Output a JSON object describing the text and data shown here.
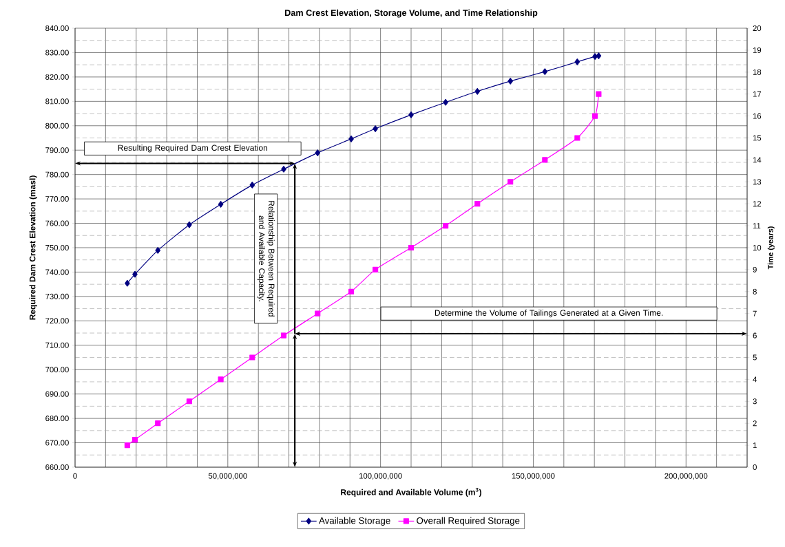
{
  "chart_data": {
    "type": "line",
    "title": "Dam Crest Elevation, Storage Volume, and Time Relationship",
    "xlabel": "Required and Available Volume (m$^{3}$)",
    "ylabel": "Required Dam Crest Elevation (masl)",
    "y2label": "Time (years)",
    "x": [
      17100000,
      19600000,
      27100000,
      37400000,
      47700000,
      58000000,
      68300000,
      79400000,
      90400000,
      98300000,
      110000000,
      121300000,
      131700000,
      142500000,
      153800000,
      164400000,
      170200000,
      171400000
    ],
    "series": [
      {
        "name": "Available Storage",
        "color": "#000080",
        "marker": "diamond",
        "values": [
          735.4,
          739.1,
          748.9,
          759.4,
          767.8,
          775.7,
          782.2,
          788.9,
          794.6,
          798.8,
          804.5,
          809.6,
          814.1,
          818.3,
          822.2,
          826.2,
          828.4,
          828.7
        ]
      },
      {
        "name": "Overall Required Storage",
        "color": "#ff00ff",
        "marker": "square",
        "axis": "y2",
        "values": [
          1,
          1.25,
          2,
          3,
          4,
          5,
          6,
          7,
          8,
          9,
          10,
          11,
          12,
          13,
          14,
          15,
          16,
          17
        ]
      }
    ],
    "xlim": [
      0,
      220000000
    ],
    "xticks": [
      {
        "value": 0,
        "label": "0"
      },
      {
        "value": 10000000,
        "label": null
      },
      {
        "value": 20000000,
        "label": null
      },
      {
        "value": 30000000,
        "label": null
      },
      {
        "value": 40000000,
        "label": null
      },
      {
        "value": 50000000,
        "label": "50,000,000"
      },
      {
        "value": 60000000,
        "label": null
      },
      {
        "value": 70000000,
        "label": null
      },
      {
        "value": 80000000,
        "label": null
      },
      {
        "value": 90000000,
        "label": null
      },
      {
        "value": 100000000,
        "label": "100,000,000"
      },
      {
        "value": 110000000,
        "label": null
      },
      {
        "value": 120000000,
        "label": null
      },
      {
        "value": 130000000,
        "label": null
      },
      {
        "value": 140000000,
        "label": null
      },
      {
        "value": 150000000,
        "label": "150,000,000"
      },
      {
        "value": 160000000,
        "label": null
      },
      {
        "value": 170000000,
        "label": null
      },
      {
        "value": 180000000,
        "label": null
      },
      {
        "value": 190000000,
        "label": null
      },
      {
        "value": 200000000,
        "label": "200,000,000"
      },
      {
        "value": 210000000,
        "label": null
      },
      {
        "value": 220000000,
        "label": null
      }
    ],
    "ylim": [
      660,
      840
    ],
    "yticks": [
      {
        "value": 660,
        "label": "660.00"
      },
      {
        "value": 670,
        "label": "670.00"
      },
      {
        "value": 680,
        "label": "680.00"
      },
      {
        "value": 690,
        "label": "690.00"
      },
      {
        "value": 700,
        "label": "700.00"
      },
      {
        "value": 710,
        "label": "710.00"
      },
      {
        "value": 720,
        "label": "720.00"
      },
      {
        "value": 730,
        "label": "730.00"
      },
      {
        "value": 740,
        "label": "740.00"
      },
      {
        "value": 750,
        "label": "750.00"
      },
      {
        "value": 760,
        "label": "760.00"
      },
      {
        "value": 770,
        "label": "770.00"
      },
      {
        "value": 780,
        "label": "780.00"
      },
      {
        "value": 790,
        "label": "790.00"
      },
      {
        "value": 800,
        "label": "800.00"
      },
      {
        "value": 810,
        "label": "810.00"
      },
      {
        "value": 820,
        "label": "820.00"
      },
      {
        "value": 830,
        "label": "830.00"
      },
      {
        "value": 840,
        "label": "840.00"
      }
    ],
    "y2lim": [
      0,
      20
    ],
    "y2ticks": [
      0,
      1,
      2,
      3,
      4,
      5,
      6,
      7,
      8,
      9,
      10,
      11,
      12,
      13,
      14,
      15,
      16,
      17,
      18,
      19,
      20
    ],
    "grid": true,
    "legend": "bottom",
    "annotations": [
      "Resulting Required Dam Crest Elevation",
      "Relationship Between Required and Available Capacity.",
      "Determine the Volume of Tailings Generated at a Given Time."
    ]
  }
}
